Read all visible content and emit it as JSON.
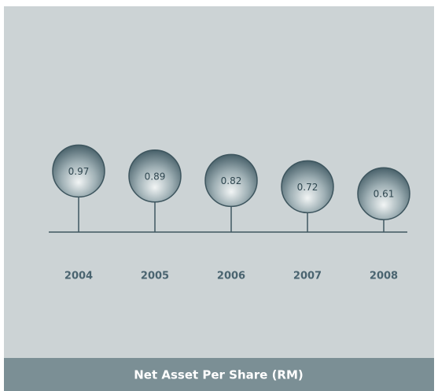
{
  "chart_data": {
    "type": "lollipop",
    "title": "Net Asset Per Share (RM)",
    "categories": [
      "2004",
      "2005",
      "2006",
      "2007",
      "2008"
    ],
    "values": [
      0.97,
      0.89,
      0.82,
      0.72,
      0.61
    ]
  }
}
